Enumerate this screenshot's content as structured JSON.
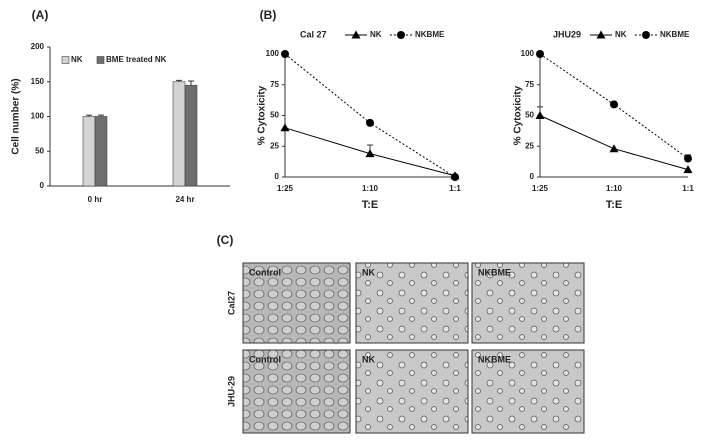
{
  "chart_data": [
    {
      "type": "bar",
      "label": "(A)",
      "y_label": "Cell number (%)",
      "categories": [
        "0 hr",
        "24 hr"
      ],
      "series": [
        {
          "name": "NK",
          "color": "#d3d3d3",
          "values": [
            100,
            150
          ],
          "errors": [
            2,
            2
          ]
        },
        {
          "name": "BME treated NK",
          "color": "#6e6e6e",
          "values": [
            100,
            145
          ],
          "errors": [
            2,
            6
          ]
        }
      ],
      "ylim": [
        0,
        200
      ],
      "yticks": [
        0,
        50,
        100,
        150,
        200
      ]
    },
    {
      "type": "line",
      "label": "(B)",
      "title": "Cal 27",
      "y_label": "% Cytoxicity",
      "x_label": "T:E",
      "categories": [
        "1:25",
        "1:10",
        "1:1"
      ],
      "series": [
        {
          "name": "NK",
          "color": "#000000",
          "marker": "triangle",
          "dash": false,
          "values": [
            40,
            19,
            1
          ],
          "errors": [
            0,
            7,
            0
          ]
        },
        {
          "name": "NKBME",
          "color": "#000000",
          "marker": "circle",
          "dash": true,
          "values": [
            100,
            44,
            0
          ],
          "errors": [
            0,
            0,
            0
          ]
        }
      ],
      "ylim": [
        0,
        100
      ],
      "yticks": [
        0,
        25,
        50,
        75,
        100
      ]
    },
    {
      "type": "line",
      "title": "JHU29",
      "y_label": "% Cytoxicity",
      "x_label": "T:E",
      "categories": [
        "1:25",
        "1:10",
        "1:1"
      ],
      "series": [
        {
          "name": "NK",
          "color": "#000000",
          "marker": "triangle",
          "dash": false,
          "values": [
            50,
            23,
            6
          ],
          "errors": [
            7,
            0,
            0
          ]
        },
        {
          "name": "NKBME",
          "color": "#000000",
          "marker": "circle",
          "dash": true,
          "values": [
            100,
            59,
            15
          ],
          "errors": [
            0,
            0,
            3
          ]
        }
      ],
      "ylim": [
        0,
        100
      ],
      "yticks": [
        0,
        25,
        50,
        75,
        100
      ]
    }
  ],
  "image_grid": {
    "label": "(C)",
    "rows": [
      "Cal27",
      "JHU-29"
    ],
    "cells": [
      [
        "Control",
        "NK",
        "NKBME"
      ],
      [
        "Control",
        "NK",
        "NKBME"
      ]
    ]
  }
}
